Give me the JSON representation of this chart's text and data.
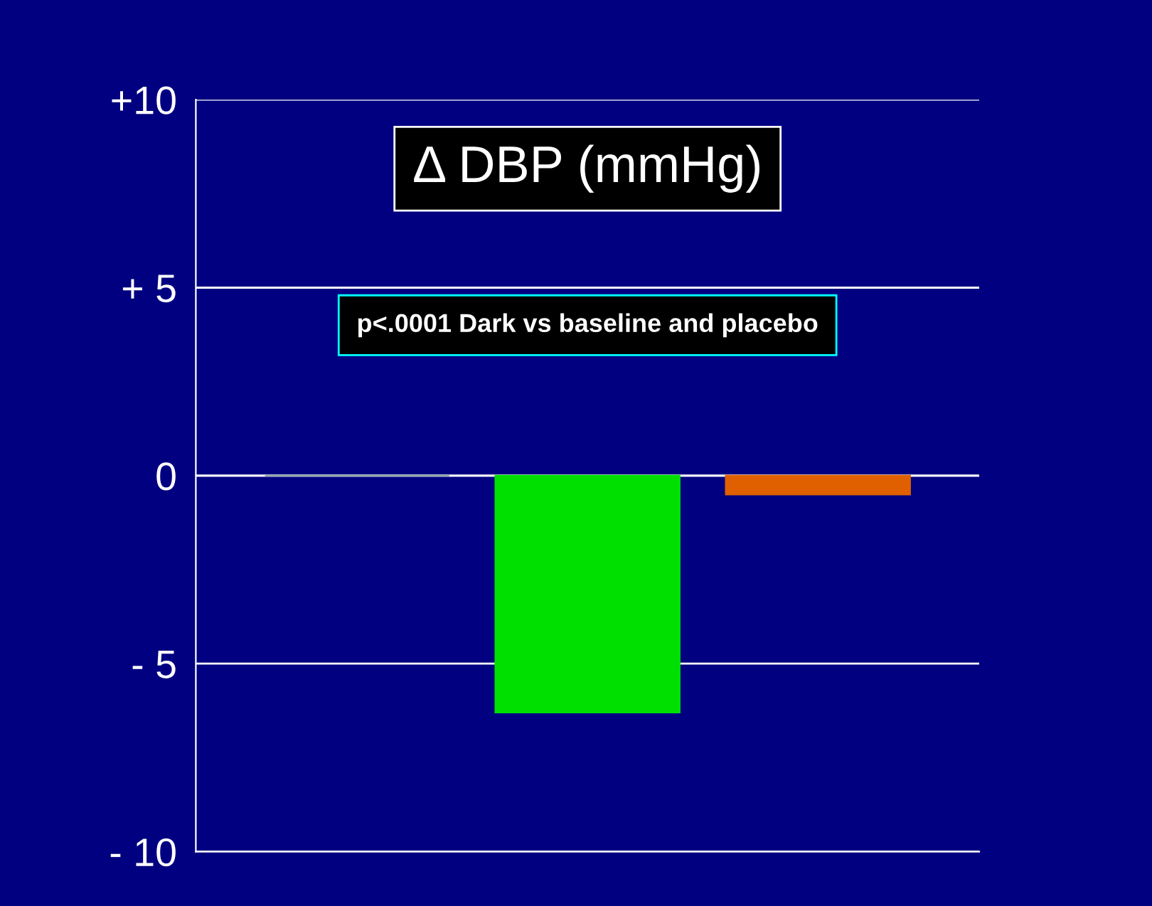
{
  "chart_data": {
    "type": "bar",
    "title": "Δ DBP (mmHg)",
    "categories": [
      null,
      null,
      null
    ],
    "values": [
      0,
      -6.3,
      -0.5
    ],
    "colors": [
      "#8fa5a5",
      "#00e000",
      "#e06000"
    ],
    "ylim": [
      -10,
      10
    ],
    "yticks": [
      {
        "value": 10,
        "label": "+10"
      },
      {
        "value": 5,
        "label": "+ 5"
      },
      0,
      {
        "value": -5,
        "label": "- 5"
      },
      {
        "value": -10,
        "label": "- 10"
      }
    ],
    "grid": "y",
    "annotations": [
      "p<.0001 Dark vs baseline and placebo"
    ]
  }
}
